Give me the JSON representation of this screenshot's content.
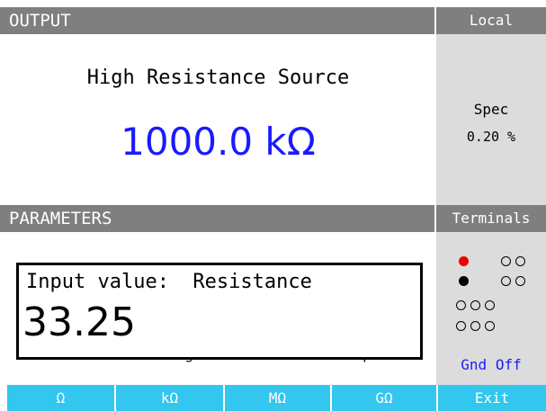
{
  "header": {
    "title": "OUTPUT",
    "mode": "Local"
  },
  "output": {
    "function": "High Resistance Source",
    "value": "1000.0 kΩ"
  },
  "spec": {
    "label": "Spec",
    "value": "0.20 %"
  },
  "parameters": {
    "title": "PARAMETERS",
    "terminals": "Terminals",
    "input_label": "Input value:  Resistance",
    "input_value": "33.25",
    "param_name": "Maximal test voltage",
    "param_value": "330 Vpeak",
    "ground": "Gnd Off"
  },
  "softkeys": [
    "Ω",
    "kΩ",
    "MΩ",
    "GΩ",
    "Exit"
  ]
}
